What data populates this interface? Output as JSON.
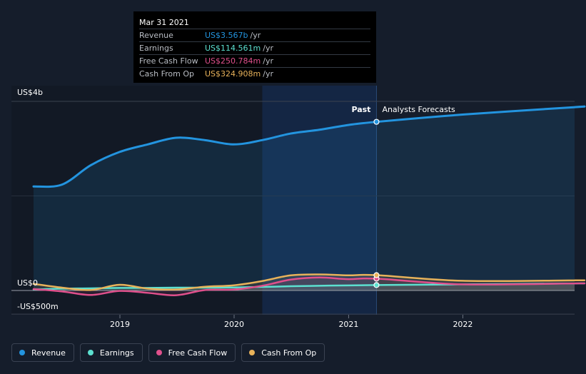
{
  "tooltip": {
    "date": "Mar 31 2021",
    "rows": [
      {
        "label": "Revenue",
        "value": "US$3.567b",
        "unit": "/yr",
        "color": "#2394df"
      },
      {
        "label": "Earnings",
        "value": "US$114.561m",
        "unit": "/yr",
        "color": "#5ce0d0"
      },
      {
        "label": "Free Cash Flow",
        "value": "US$250.784m",
        "unit": "/yr",
        "color": "#e0508c"
      },
      {
        "label": "Cash From Op",
        "value": "US$324.908m",
        "unit": "/yr",
        "color": "#e8b25a"
      }
    ]
  },
  "annotations": {
    "past": "Past",
    "forecast": "Analysts Forecasts"
  },
  "legend": [
    {
      "label": "Revenue",
      "color": "#2394df"
    },
    {
      "label": "Earnings",
      "color": "#5ce0d0"
    },
    {
      "label": "Free Cash Flow",
      "color": "#e0508c"
    },
    {
      "label": "Cash From Op",
      "color": "#e8b25a"
    }
  ],
  "chart_data": {
    "type": "line",
    "y_tick_labels": [
      "US$4b",
      "US$0",
      "-US$500m"
    ],
    "x_tick_labels": [
      "2019",
      "2020",
      "2021",
      "2022"
    ],
    "ylim": [
      -500,
      4000
    ],
    "y_unit": "US$m",
    "past_end": "2021-03-31",
    "highlight_start": "2020-03-31",
    "grid": true,
    "legend_position": "bottom",
    "series": [
      {
        "name": "Revenue",
        "color": "#2394df",
        "fill": true,
        "points": [
          [
            "2018-03-31",
            2200
          ],
          [
            "2018-06-30",
            2240
          ],
          [
            "2018-09-30",
            2650
          ],
          [
            "2018-12-31",
            2930
          ],
          [
            "2019-03-31",
            3090
          ],
          [
            "2019-06-30",
            3230
          ],
          [
            "2019-09-30",
            3180
          ],
          [
            "2019-12-31",
            3090
          ],
          [
            "2020-03-31",
            3180
          ],
          [
            "2020-06-30",
            3320
          ],
          [
            "2020-09-30",
            3400
          ],
          [
            "2020-12-31",
            3500
          ],
          [
            "2021-03-31",
            3567
          ],
          [
            "2021-12-31",
            3720
          ],
          [
            "2022-12-31",
            3880
          ],
          [
            "2023-12-31",
            4020
          ]
        ]
      },
      {
        "name": "Earnings",
        "color": "#5ce0d0",
        "points": [
          [
            "2018-03-31",
            20
          ],
          [
            "2018-06-30",
            40
          ],
          [
            "2018-09-30",
            45
          ],
          [
            "2018-12-31",
            55
          ],
          [
            "2019-03-31",
            55
          ],
          [
            "2019-06-30",
            60
          ],
          [
            "2019-09-30",
            60
          ],
          [
            "2019-12-31",
            65
          ],
          [
            "2020-03-31",
            75
          ],
          [
            "2020-06-30",
            90
          ],
          [
            "2020-09-30",
            100
          ],
          [
            "2020-12-31",
            108
          ],
          [
            "2021-03-31",
            114.561
          ],
          [
            "2021-12-31",
            130
          ],
          [
            "2022-12-31",
            150
          ],
          [
            "2023-12-31",
            165
          ]
        ]
      },
      {
        "name": "Free Cash Flow",
        "color": "#e0508c",
        "points": [
          [
            "2018-03-31",
            30
          ],
          [
            "2018-06-30",
            -20
          ],
          [
            "2018-09-30",
            -95
          ],
          [
            "2018-12-31",
            -10
          ],
          [
            "2019-03-31",
            -50
          ],
          [
            "2019-06-30",
            -100
          ],
          [
            "2019-09-30",
            10
          ],
          [
            "2019-12-31",
            20
          ],
          [
            "2020-03-31",
            100
          ],
          [
            "2020-06-30",
            230
          ],
          [
            "2020-09-30",
            275
          ],
          [
            "2020-12-31",
            240
          ],
          [
            "2021-03-31",
            250.784
          ],
          [
            "2021-12-31",
            130
          ],
          [
            "2022-12-31",
            150
          ],
          [
            "2023-12-31",
            160
          ]
        ]
      },
      {
        "name": "Cash From Op",
        "color": "#e8b25a",
        "points": [
          [
            "2018-03-31",
            140
          ],
          [
            "2018-06-30",
            60
          ],
          [
            "2018-09-30",
            10
          ],
          [
            "2018-12-31",
            120
          ],
          [
            "2019-03-31",
            40
          ],
          [
            "2019-06-30",
            20
          ],
          [
            "2019-09-30",
            80
          ],
          [
            "2019-12-31",
            110
          ],
          [
            "2020-03-31",
            200
          ],
          [
            "2020-06-30",
            320
          ],
          [
            "2020-09-30",
            340
          ],
          [
            "2020-12-31",
            320
          ],
          [
            "2021-03-31",
            324.908
          ],
          [
            "2021-12-31",
            205
          ],
          [
            "2022-12-31",
            215
          ],
          [
            "2023-12-31",
            225
          ]
        ]
      }
    ]
  }
}
